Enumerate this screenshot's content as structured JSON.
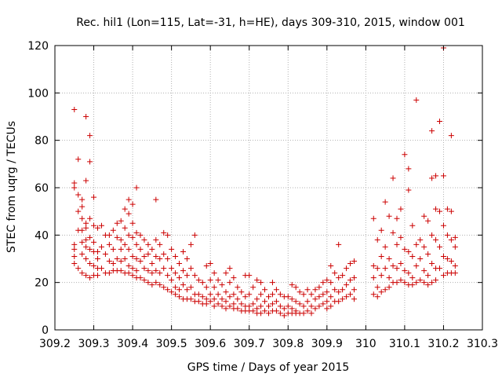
{
  "chart_data": {
    "type": "scatter",
    "title": "Rec. hil1 (Lon=115, Lat=-31, h=HE), days 309-310, 2015, window 001",
    "xlabel": "GPS time / Days of year 2015",
    "ylabel": "STEC from uqrg / TECUs",
    "xlim": [
      309.2,
      310.3
    ],
    "ylim": [
      0,
      120
    ],
    "xticks": [
      "309.2",
      "309.3",
      "309.4",
      "309.5",
      "309.6",
      "309.7",
      "309.8",
      "309.9",
      "310",
      "310.1",
      "310.2",
      "310.3"
    ],
    "xtick_values": [
      309.2,
      309.3,
      309.4,
      309.5,
      309.6,
      309.7,
      309.8,
      309.9,
      310.0,
      310.1,
      310.2,
      310.3
    ],
    "yticks": [
      "0",
      "20",
      "40",
      "60",
      "80",
      "100",
      "120"
    ],
    "ytick_values": [
      0,
      20,
      40,
      60,
      80,
      100,
      120
    ],
    "grid": true,
    "marker": "+",
    "color": "#cc0000",
    "points": [
      [
        309.25,
        93
      ],
      [
        309.25,
        62
      ],
      [
        309.25,
        60
      ],
      [
        309.25,
        36
      ],
      [
        309.25,
        34
      ],
      [
        309.25,
        31
      ],
      [
        309.25,
        28
      ],
      [
        309.26,
        72
      ],
      [
        309.26,
        57
      ],
      [
        309.26,
        50
      ],
      [
        309.26,
        42
      ],
      [
        309.26,
        26
      ],
      [
        309.27,
        55
      ],
      [
        309.27,
        52
      ],
      [
        309.27,
        47
      ],
      [
        309.27,
        42
      ],
      [
        309.27,
        37
      ],
      [
        309.27,
        32
      ],
      [
        309.27,
        24
      ],
      [
        309.28,
        90
      ],
      [
        309.28,
        63
      ],
      [
        309.28,
        45
      ],
      [
        309.28,
        43
      ],
      [
        309.28,
        38
      ],
      [
        309.28,
        35
      ],
      [
        309.28,
        30
      ],
      [
        309.28,
        23
      ],
      [
        309.29,
        82
      ],
      [
        309.29,
        71
      ],
      [
        309.29,
        47
      ],
      [
        309.29,
        39
      ],
      [
        309.29,
        34
      ],
      [
        309.29,
        28
      ],
      [
        309.29,
        22
      ],
      [
        309.3,
        56
      ],
      [
        309.3,
        44
      ],
      [
        309.3,
        37
      ],
      [
        309.3,
        33
      ],
      [
        309.3,
        27
      ],
      [
        309.3,
        23
      ],
      [
        309.31,
        43
      ],
      [
        309.31,
        33
      ],
      [
        309.31,
        30
      ],
      [
        309.31,
        26
      ],
      [
        309.31,
        23
      ],
      [
        309.32,
        44
      ],
      [
        309.32,
        35
      ],
      [
        309.32,
        26
      ],
      [
        309.33,
        40
      ],
      [
        309.33,
        32
      ],
      [
        309.33,
        24
      ],
      [
        309.34,
        40
      ],
      [
        309.34,
        36
      ],
      [
        309.34,
        29
      ],
      [
        309.34,
        24
      ],
      [
        309.35,
        42
      ],
      [
        309.35,
        34
      ],
      [
        309.35,
        28
      ],
      [
        309.35,
        25
      ],
      [
        309.36,
        45
      ],
      [
        309.36,
        39
      ],
      [
        309.36,
        30
      ],
      [
        309.36,
        25
      ],
      [
        309.37,
        46
      ],
      [
        309.37,
        38
      ],
      [
        309.37,
        34
      ],
      [
        309.37,
        29
      ],
      [
        309.37,
        25
      ],
      [
        309.38,
        51
      ],
      [
        309.38,
        43
      ],
      [
        309.38,
        36
      ],
      [
        309.38,
        30
      ],
      [
        309.38,
        24
      ],
      [
        309.39,
        55
      ],
      [
        309.39,
        49
      ],
      [
        309.39,
        40
      ],
      [
        309.39,
        34
      ],
      [
        309.39,
        27
      ],
      [
        309.39,
        24
      ],
      [
        309.4,
        53
      ],
      [
        309.4,
        45
      ],
      [
        309.4,
        39
      ],
      [
        309.4,
        31
      ],
      [
        309.4,
        26
      ],
      [
        309.4,
        23
      ],
      [
        309.41,
        60
      ],
      [
        309.41,
        41
      ],
      [
        309.41,
        36
      ],
      [
        309.41,
        30
      ],
      [
        309.41,
        25
      ],
      [
        309.41,
        22
      ],
      [
        309.42,
        40
      ],
      [
        309.42,
        34
      ],
      [
        309.42,
        29
      ],
      [
        309.42,
        22
      ],
      [
        309.43,
        38
      ],
      [
        309.43,
        31
      ],
      [
        309.43,
        26
      ],
      [
        309.43,
        21
      ],
      [
        309.44,
        36
      ],
      [
        309.44,
        32
      ],
      [
        309.44,
        25
      ],
      [
        309.44,
        20
      ],
      [
        309.45,
        34
      ],
      [
        309.45,
        28
      ],
      [
        309.45,
        24
      ],
      [
        309.45,
        19
      ],
      [
        309.46,
        55
      ],
      [
        309.46,
        38
      ],
      [
        309.46,
        31
      ],
      [
        309.46,
        25
      ],
      [
        309.46,
        20
      ],
      [
        309.47,
        36
      ],
      [
        309.47,
        30
      ],
      [
        309.47,
        24
      ],
      [
        309.47,
        19
      ],
      [
        309.48,
        41
      ],
      [
        309.48,
        32
      ],
      [
        309.48,
        26
      ],
      [
        309.48,
        18
      ],
      [
        309.49,
        40
      ],
      [
        309.49,
        30
      ],
      [
        309.49,
        23
      ],
      [
        309.49,
        17
      ],
      [
        309.5,
        34
      ],
      [
        309.5,
        26
      ],
      [
        309.5,
        21
      ],
      [
        309.5,
        16
      ],
      [
        309.51,
        31
      ],
      [
        309.51,
        24
      ],
      [
        309.51,
        18
      ],
      [
        309.51,
        15
      ],
      [
        309.52,
        28
      ],
      [
        309.52,
        22
      ],
      [
        309.52,
        17
      ],
      [
        309.52,
        14
      ],
      [
        309.53,
        33
      ],
      [
        309.53,
        25
      ],
      [
        309.53,
        19
      ],
      [
        309.53,
        13
      ],
      [
        309.54,
        30
      ],
      [
        309.54,
        23
      ],
      [
        309.54,
        17
      ],
      [
        309.54,
        13
      ],
      [
        309.55,
        36
      ],
      [
        309.55,
        26
      ],
      [
        309.55,
        18
      ],
      [
        309.55,
        13
      ],
      [
        309.56,
        40
      ],
      [
        309.56,
        23
      ],
      [
        309.56,
        15
      ],
      [
        309.56,
        12
      ],
      [
        309.57,
        21
      ],
      [
        309.57,
        15
      ],
      [
        309.57,
        12
      ],
      [
        309.58,
        20
      ],
      [
        309.58,
        14
      ],
      [
        309.58,
        11
      ],
      [
        309.59,
        27
      ],
      [
        309.59,
        18
      ],
      [
        309.59,
        13
      ],
      [
        309.59,
        11
      ],
      [
        309.6,
        28
      ],
      [
        309.6,
        21
      ],
      [
        309.6,
        15
      ],
      [
        309.6,
        12
      ],
      [
        309.61,
        24
      ],
      [
        309.61,
        18
      ],
      [
        309.61,
        13
      ],
      [
        309.61,
        10
      ],
      [
        309.62,
        21
      ],
      [
        309.62,
        15
      ],
      [
        309.62,
        11
      ],
      [
        309.63,
        19
      ],
      [
        309.63,
        13
      ],
      [
        309.63,
        10
      ],
      [
        309.64,
        24
      ],
      [
        309.64,
        16
      ],
      [
        309.64,
        12
      ],
      [
        309.64,
        9
      ],
      [
        309.65,
        26
      ],
      [
        309.65,
        20
      ],
      [
        309.65,
        14
      ],
      [
        309.65,
        10
      ],
      [
        309.66,
        22
      ],
      [
        309.66,
        15
      ],
      [
        309.66,
        11
      ],
      [
        309.66,
        9
      ],
      [
        309.67,
        18
      ],
      [
        309.67,
        13
      ],
      [
        309.67,
        9
      ],
      [
        309.68,
        16
      ],
      [
        309.68,
        11
      ],
      [
        309.68,
        8
      ],
      [
        309.69,
        23
      ],
      [
        309.69,
        14
      ],
      [
        309.69,
        10
      ],
      [
        309.69,
        8
      ],
      [
        309.7,
        23
      ],
      [
        309.7,
        15
      ],
      [
        309.7,
        10
      ],
      [
        309.7,
        8
      ],
      [
        309.71,
        18
      ],
      [
        309.71,
        11
      ],
      [
        309.71,
        8
      ],
      [
        309.72,
        21
      ],
      [
        309.72,
        13
      ],
      [
        309.72,
        9
      ],
      [
        309.72,
        7
      ],
      [
        309.73,
        20
      ],
      [
        309.73,
        15
      ],
      [
        309.73,
        10
      ],
      [
        309.73,
        7
      ],
      [
        309.74,
        17
      ],
      [
        309.74,
        12
      ],
      [
        309.74,
        8
      ],
      [
        309.75,
        14
      ],
      [
        309.75,
        10
      ],
      [
        309.75,
        7
      ],
      [
        309.76,
        20
      ],
      [
        309.76,
        15
      ],
      [
        309.76,
        11
      ],
      [
        309.76,
        8
      ],
      [
        309.77,
        17
      ],
      [
        309.77,
        12
      ],
      [
        309.77,
        8
      ],
      [
        309.78,
        15
      ],
      [
        309.78,
        10
      ],
      [
        309.78,
        7
      ],
      [
        309.79,
        14
      ],
      [
        309.79,
        9
      ],
      [
        309.79,
        6
      ],
      [
        309.8,
        14
      ],
      [
        309.8,
        10
      ],
      [
        309.8,
        7
      ],
      [
        309.81,
        19
      ],
      [
        309.81,
        13
      ],
      [
        309.81,
        9
      ],
      [
        309.81,
        7
      ],
      [
        309.82,
        18
      ],
      [
        309.82,
        12
      ],
      [
        309.82,
        8
      ],
      [
        309.82,
        7
      ],
      [
        309.83,
        16
      ],
      [
        309.83,
        11
      ],
      [
        309.83,
        7
      ],
      [
        309.84,
        15
      ],
      [
        309.84,
        10
      ],
      [
        309.84,
        7
      ],
      [
        309.85,
        17
      ],
      [
        309.85,
        12
      ],
      [
        309.85,
        8
      ],
      [
        309.86,
        15
      ],
      [
        309.86,
        10
      ],
      [
        309.86,
        7
      ],
      [
        309.87,
        17
      ],
      [
        309.87,
        13
      ],
      [
        309.87,
        9
      ],
      [
        309.88,
        18
      ],
      [
        309.88,
        14
      ],
      [
        309.88,
        10
      ],
      [
        309.89,
        20
      ],
      [
        309.89,
        15
      ],
      [
        309.89,
        11
      ],
      [
        309.9,
        21
      ],
      [
        309.9,
        16
      ],
      [
        309.9,
        12
      ],
      [
        309.9,
        9
      ],
      [
        309.91,
        27
      ],
      [
        309.91,
        20
      ],
      [
        309.91,
        14
      ],
      [
        309.91,
        10
      ],
      [
        309.92,
        24
      ],
      [
        309.92,
        17
      ],
      [
        309.92,
        12
      ],
      [
        309.93,
        36
      ],
      [
        309.93,
        22
      ],
      [
        309.93,
        16
      ],
      [
        309.93,
        12
      ],
      [
        309.94,
        23
      ],
      [
        309.94,
        17
      ],
      [
        309.94,
        13
      ],
      [
        309.95,
        26
      ],
      [
        309.95,
        19
      ],
      [
        309.95,
        14
      ],
      [
        309.96,
        28
      ],
      [
        309.96,
        21
      ],
      [
        309.96,
        15
      ],
      [
        309.97,
        29
      ],
      [
        309.97,
        22
      ],
      [
        309.97,
        17
      ],
      [
        309.97,
        13
      ],
      [
        310.02,
        47
      ],
      [
        310.02,
        27
      ],
      [
        310.02,
        22
      ],
      [
        310.02,
        15
      ],
      [
        310.03,
        38
      ],
      [
        310.03,
        26
      ],
      [
        310.03,
        18
      ],
      [
        310.03,
        14
      ],
      [
        310.04,
        42
      ],
      [
        310.04,
        31
      ],
      [
        310.04,
        23
      ],
      [
        310.04,
        16
      ],
      [
        310.05,
        54
      ],
      [
        310.05,
        35
      ],
      [
        310.05,
        26
      ],
      [
        310.05,
        17
      ],
      [
        310.06,
        48
      ],
      [
        310.06,
        30
      ],
      [
        310.06,
        22
      ],
      [
        310.06,
        18
      ],
      [
        310.07,
        64
      ],
      [
        310.07,
        41
      ],
      [
        310.07,
        27
      ],
      [
        310.07,
        20
      ],
      [
        310.08,
        47
      ],
      [
        310.08,
        36
      ],
      [
        310.08,
        26
      ],
      [
        310.08,
        20
      ],
      [
        310.09,
        51
      ],
      [
        310.09,
        39
      ],
      [
        310.09,
        28
      ],
      [
        310.09,
        21
      ],
      [
        310.1,
        74
      ],
      [
        310.1,
        34
      ],
      [
        310.1,
        25
      ],
      [
        310.1,
        20
      ],
      [
        310.11,
        68
      ],
      [
        310.11,
        59
      ],
      [
        310.11,
        33
      ],
      [
        310.11,
        24
      ],
      [
        310.11,
        19
      ],
      [
        310.12,
        44
      ],
      [
        310.12,
        31
      ],
      [
        310.12,
        22
      ],
      [
        310.12,
        19
      ],
      [
        310.13,
        97
      ],
      [
        310.13,
        36
      ],
      [
        310.13,
        27
      ],
      [
        310.13,
        20
      ],
      [
        310.14,
        38
      ],
      [
        310.14,
        30
      ],
      [
        310.14,
        21
      ],
      [
        310.15,
        48
      ],
      [
        310.15,
        35
      ],
      [
        310.15,
        25
      ],
      [
        310.15,
        20
      ],
      [
        310.16,
        46
      ],
      [
        310.16,
        32
      ],
      [
        310.16,
        23
      ],
      [
        310.16,
        19
      ],
      [
        310.17,
        84
      ],
      [
        310.17,
        64
      ],
      [
        310.17,
        40
      ],
      [
        310.17,
        28
      ],
      [
        310.17,
        20
      ],
      [
        310.18,
        65
      ],
      [
        310.18,
        51
      ],
      [
        310.18,
        38
      ],
      [
        310.18,
        26
      ],
      [
        310.18,
        21
      ],
      [
        310.19,
        88
      ],
      [
        310.19,
        50
      ],
      [
        310.19,
        35
      ],
      [
        310.19,
        26
      ],
      [
        310.2,
        119
      ],
      [
        310.2,
        65
      ],
      [
        310.2,
        44
      ],
      [
        310.2,
        31
      ],
      [
        310.2,
        23
      ],
      [
        310.21,
        51
      ],
      [
        310.21,
        40
      ],
      [
        310.21,
        30
      ],
      [
        310.21,
        24
      ],
      [
        310.22,
        82
      ],
      [
        310.22,
        50
      ],
      [
        310.22,
        38
      ],
      [
        310.22,
        29
      ],
      [
        310.22,
        24
      ],
      [
        310.23,
        39
      ],
      [
        310.23,
        35
      ],
      [
        310.23,
        27
      ],
      [
        310.23,
        24
      ]
    ]
  }
}
